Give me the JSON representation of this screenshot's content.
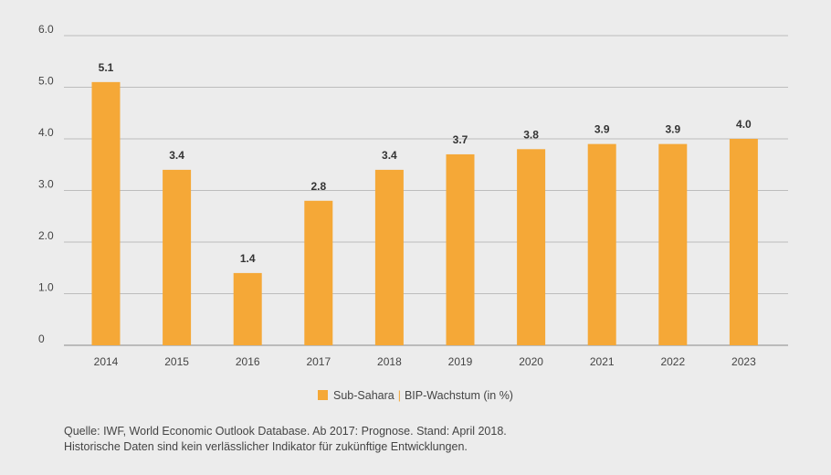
{
  "chart_data": {
    "type": "bar",
    "categories": [
      "2014",
      "2015",
      "2016",
      "2017",
      "2018",
      "2019",
      "2020",
      "2021",
      "2022",
      "2023"
    ],
    "values": [
      5.1,
      3.4,
      1.4,
      2.8,
      3.4,
      3.7,
      3.8,
      3.9,
      3.9,
      4.0
    ],
    "value_labels": [
      "5.1",
      "3.4",
      "1.4",
      "2.8",
      "3.4",
      "3.7",
      "3.8",
      "3.9",
      "3.9",
      "4.0"
    ],
    "ylim": [
      0,
      6
    ],
    "yticks": [
      0,
      1,
      2,
      3,
      4,
      5,
      6
    ],
    "ytick_labels": [
      "0",
      "1.0",
      "2.0",
      "3.0",
      "4.0",
      "5.0",
      "6.0"
    ],
    "title": "",
    "xlabel": "",
    "ylabel": "",
    "grid": true,
    "legend_position": "bottom-center",
    "bar_color": "#f5a837"
  },
  "legend": {
    "series_label": "Sub-Sahara",
    "separator": "|",
    "metric_label": "BIP-Wachstum (in %)"
  },
  "footnote": {
    "line1": "Quelle: IWF, World Economic Outlook Database. Ab 2017: Prognose. Stand: April 2018.",
    "line2": "Historische Daten sind kein verlässlicher Indikator für zukünftige Entwicklungen."
  }
}
